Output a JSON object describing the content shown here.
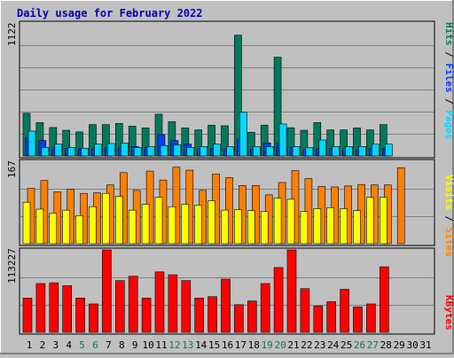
{
  "title": "Daily usage for February 2022",
  "colors": {
    "title": "#0000c0",
    "background": "#c0c0c0",
    "plot": "#c0c0c0",
    "grid": "#808080",
    "hits": "#007a5c",
    "files": "#0040ff",
    "pages": "#00d8ff",
    "visits": "#ff8000",
    "sites": "#ffff00",
    "kbytes": "#ff0000",
    "weekend_label": "#007a5c",
    "weekday_label": "#000000"
  },
  "legend": {
    "top": {
      "pages": "Pages",
      "files": "Files",
      "hits": "Hits",
      "sep": " / "
    },
    "middle": {
      "sites": "Sites",
      "visits": "Visits",
      "sep": " / "
    },
    "bottom": {
      "kbytes": "KBytes"
    }
  },
  "chart_data": [
    {
      "type": "bar",
      "title": "Daily usage for February 2022",
      "ymax_label": "1122",
      "ylim": [
        0,
        1122
      ],
      "grid": true,
      "legend_position": "right (vertical)",
      "categories": [
        "1",
        "2",
        "3",
        "4",
        "5",
        "6",
        "7",
        "8",
        "9",
        "10",
        "11",
        "12",
        "13",
        "14",
        "15",
        "16",
        "17",
        "18",
        "19",
        "20",
        "21",
        "22",
        "23",
        "24",
        "25",
        "26",
        "27",
        "28",
        "29",
        "30",
        "31"
      ],
      "weekend_days": [
        "5",
        "6",
        "12",
        "13",
        "19",
        "20",
        "26",
        "27"
      ],
      "series": [
        {
          "name": "Hits",
          "values": [
            360,
            282,
            240,
            217,
            203,
            265,
            265,
            275,
            252,
            237,
            352,
            290,
            237,
            220,
            260,
            255,
            1020,
            200,
            260,
            834,
            238,
            217,
            282,
            220,
            220,
            237,
            220,
            265,
            null,
            null,
            null
          ]
        },
        {
          "name": "Files",
          "values": [
            150,
            130,
            70,
            65,
            60,
            60,
            70,
            70,
            80,
            70,
            180,
            130,
            100,
            60,
            65,
            60,
            140,
            60,
            110,
            110,
            70,
            55,
            60,
            65,
            60,
            55,
            65,
            60,
            null,
            null,
            null
          ]
        },
        {
          "name": "Pages",
          "values": [
            210,
            72,
            100,
            72,
            65,
            100,
            105,
            110,
            72,
            80,
            88,
            95,
            72,
            80,
            100,
            80,
            370,
            80,
            80,
            270,
            80,
            72,
            135,
            80,
            80,
            80,
            100,
            100,
            null,
            null,
            null
          ]
        }
      ]
    },
    {
      "type": "bar",
      "ymax_label": "167",
      "ylim": [
        0,
        167
      ],
      "grid": true,
      "categories": [
        "1",
        "2",
        "3",
        "4",
        "5",
        "6",
        "7",
        "8",
        "9",
        "10",
        "11",
        "12",
        "13",
        "14",
        "15",
        "16",
        "17",
        "18",
        "19",
        "20",
        "21",
        "22",
        "23",
        "24",
        "25",
        "26",
        "27",
        "28",
        "29",
        "30",
        "31"
      ],
      "series": [
        {
          "name": "Visits",
          "values": [
            112,
            128,
            105,
            110,
            102,
            103,
            119,
            144,
            108,
            147,
            129,
            155,
            149,
            108,
            141,
            134,
            118,
            118,
            99,
            124,
            148,
            132,
            116,
            115,
            117,
            120,
            119,
            119,
            154,
            null,
            null
          ]
        },
        {
          "name": "Sites",
          "values": [
            84,
            70,
            62,
            68,
            57,
            75,
            102,
            96,
            68,
            80,
            94,
            75,
            80,
            78,
            87,
            68,
            69,
            67,
            65,
            92,
            90,
            65,
            71,
            73,
            71,
            67,
            94,
            94,
            null,
            null,
            null
          ]
        }
      ]
    },
    {
      "type": "bar",
      "ymax_label": "113227",
      "ylim": [
        0,
        113227
      ],
      "grid": true,
      "categories": [
        "1",
        "2",
        "3",
        "4",
        "5",
        "6",
        "7",
        "8",
        "9",
        "10",
        "11",
        "12",
        "13",
        "14",
        "15",
        "16",
        "17",
        "18",
        "19",
        "20",
        "21",
        "22",
        "23",
        "24",
        "25",
        "26",
        "27",
        "28",
        "29",
        "30",
        "31"
      ],
      "series": [
        {
          "name": "KBytes",
          "values": [
            47000,
            67000,
            68000,
            64000,
            47000,
            39000,
            113227,
            71000,
            77000,
            47000,
            83000,
            79000,
            71000,
            47000,
            49000,
            73000,
            38000,
            43000,
            67000,
            89000,
            113227,
            60000,
            36000,
            42000,
            59000,
            35000,
            39000,
            90000,
            null,
            null,
            null
          ]
        }
      ]
    }
  ]
}
